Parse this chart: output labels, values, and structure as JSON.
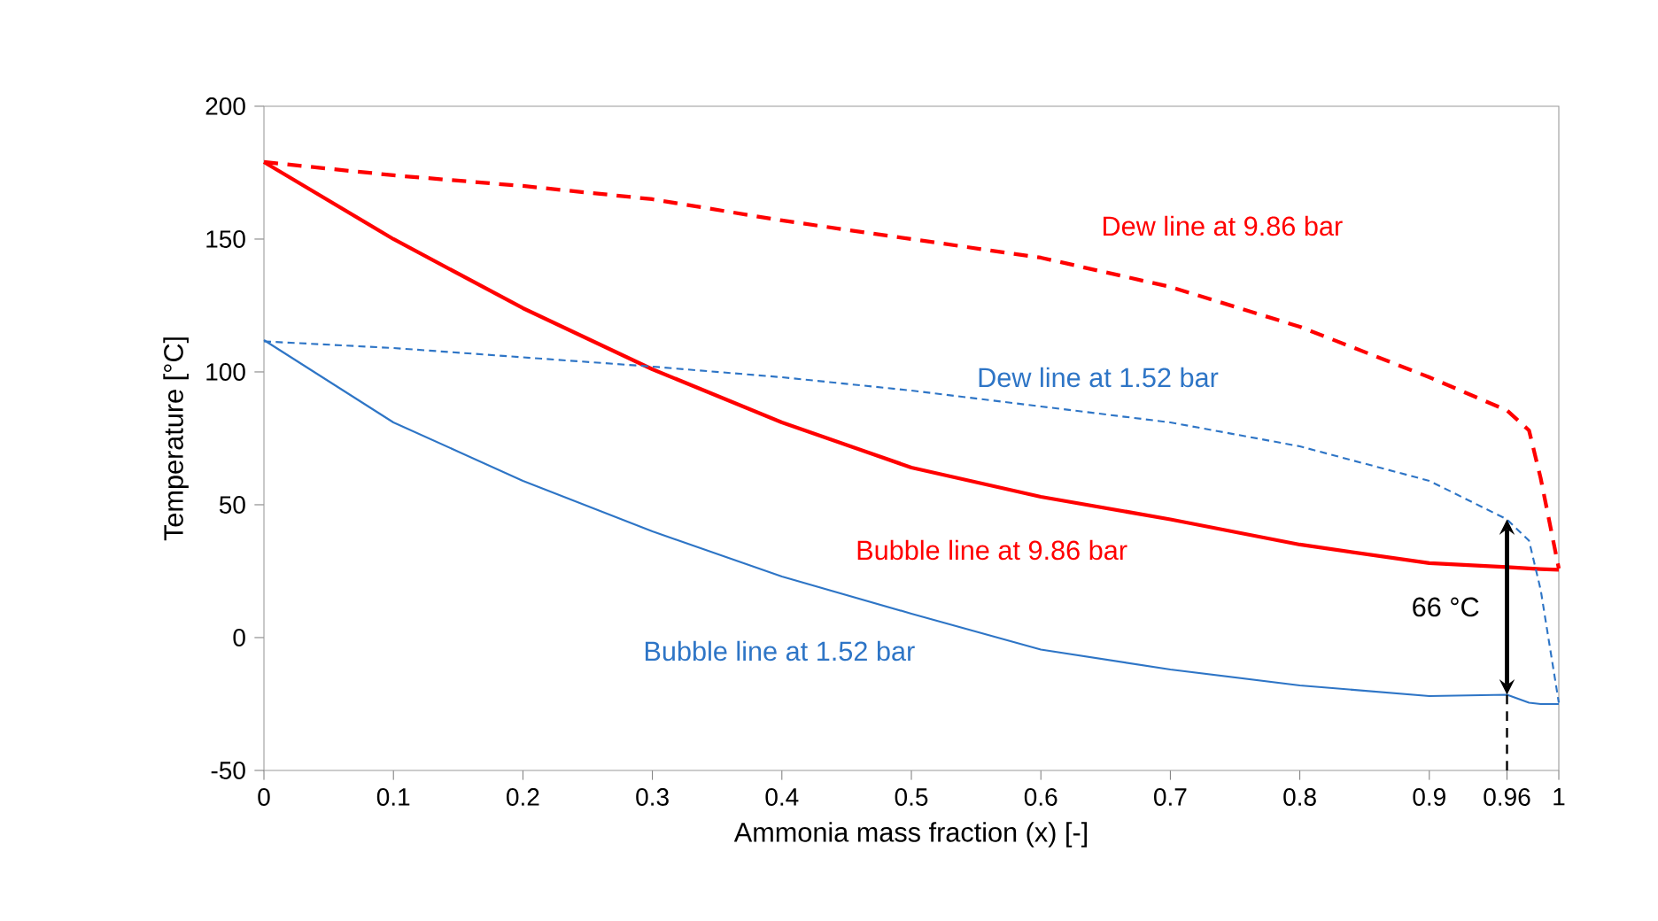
{
  "chart_data": {
    "type": "line",
    "xlabel": "Ammonia mass fraction (x) [-]",
    "ylabel": "Temperature [°C]",
    "xlim": [
      0,
      1
    ],
    "ylim": [
      -50,
      200
    ],
    "xticks": [
      0,
      0.1,
      0.2,
      0.3,
      0.4,
      0.5,
      0.6,
      0.7,
      0.8,
      0.9,
      0.96,
      1
    ],
    "yticks": [
      -50,
      0,
      50,
      100,
      150,
      200
    ],
    "grid": false,
    "marker": "none",
    "x": [
      0,
      0.1,
      0.2,
      0.3,
      0.4,
      0.5,
      0.6,
      0.7,
      0.8,
      0.9,
      0.96,
      0.977,
      0.986,
      1
    ],
    "series": [
      {
        "name": "Dew line at 9.86 bar",
        "color": "#ff0000",
        "line_style": "dashed",
        "values": [
          179,
          174,
          170,
          165,
          157,
          150,
          143,
          132,
          117,
          98,
          85.5,
          78,
          60,
          26
        ]
      },
      {
        "name": "Bubble line at 9.86 bar",
        "color": "#ff0000",
        "line_style": "solid",
        "values": [
          179,
          150,
          124,
          101,
          81,
          64,
          53,
          44.5,
          35,
          28,
          26.5,
          26,
          25.8,
          25.5
        ]
      },
      {
        "name": "Dew line at 1.52 bar",
        "color": "#2e75c6",
        "line_style": "dotted",
        "values": [
          111.5,
          109,
          105.5,
          102,
          98,
          93,
          87,
          81,
          72,
          59,
          44.5,
          36.5,
          18,
          -24.5
        ]
      },
      {
        "name": "Bubble line at 1.52 bar",
        "color": "#2e75c6",
        "line_style": "solid",
        "values": [
          112,
          81,
          59,
          40,
          23,
          9,
          -4.5,
          -12,
          -18,
          -22,
          -21.5,
          -24.5,
          -25,
          -25
        ]
      }
    ],
    "annotations": [
      "66 °C"
    ]
  }
}
